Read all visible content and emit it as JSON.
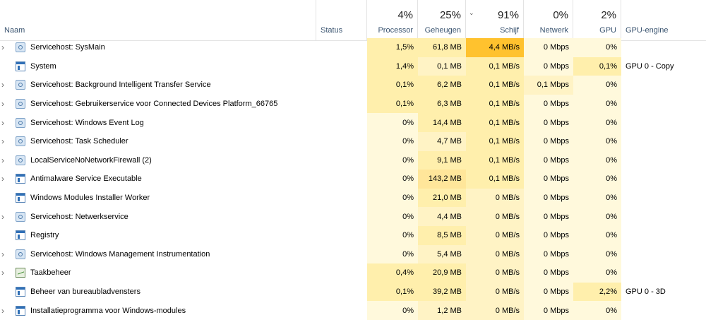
{
  "header": {
    "naam": "Naam",
    "status": "Status",
    "processor": {
      "pct": "4%",
      "label": "Processor"
    },
    "geheugen": {
      "pct": "25%",
      "label": "Geheugen"
    },
    "schijf": {
      "pct": "91%",
      "label": "Schijf"
    },
    "netwerk": {
      "pct": "0%",
      "label": "Netwerk"
    },
    "gpu": {
      "pct": "2%",
      "label": "GPU"
    },
    "gpu_engine": "GPU-engine",
    "sort_indicator": "chevron-down-icon"
  },
  "rows": [
    {
      "name": "Servicehost: SysMain",
      "icon": "gear-icon",
      "expand": true,
      "status": "",
      "cpu": "1,5%",
      "mem": "61,8 MB",
      "disk": "4,4 MB/s",
      "net": "0 Mbps",
      "gpu": "0%",
      "engine": ""
    },
    {
      "name": "System",
      "icon": "window-icon",
      "expand": false,
      "status": "",
      "cpu": "1,4%",
      "mem": "0,1 MB",
      "disk": "0,1 MB/s",
      "net": "0 Mbps",
      "gpu": "0,1%",
      "engine": "GPU 0 - Copy"
    },
    {
      "name": "Servicehost: Background Intelligent Transfer Service",
      "icon": "gear-icon",
      "expand": true,
      "status": "",
      "cpu": "0,1%",
      "mem": "6,2 MB",
      "disk": "0,1 MB/s",
      "net": "0,1 Mbps",
      "gpu": "0%",
      "engine": ""
    },
    {
      "name": "Servicehost: Gebruikerservice voor Connected Devices Platform_66765",
      "icon": "gear-icon",
      "expand": true,
      "status": "",
      "cpu": "0,1%",
      "mem": "6,3 MB",
      "disk": "0,1 MB/s",
      "net": "0 Mbps",
      "gpu": "0%",
      "engine": ""
    },
    {
      "name": "Servicehost: Windows Event Log",
      "icon": "gear-icon",
      "expand": true,
      "status": "",
      "cpu": "0%",
      "mem": "14,4 MB",
      "disk": "0,1 MB/s",
      "net": "0 Mbps",
      "gpu": "0%",
      "engine": ""
    },
    {
      "name": "Servicehost: Task Scheduler",
      "icon": "gear-icon",
      "expand": true,
      "status": "",
      "cpu": "0%",
      "mem": "4,7 MB",
      "disk": "0,1 MB/s",
      "net": "0 Mbps",
      "gpu": "0%",
      "engine": ""
    },
    {
      "name": "LocalServiceNoNetworkFirewall (2)",
      "icon": "gear-icon",
      "expand": true,
      "status": "",
      "cpu": "0%",
      "mem": "9,1 MB",
      "disk": "0,1 MB/s",
      "net": "0 Mbps",
      "gpu": "0%",
      "engine": ""
    },
    {
      "name": "Antimalware Service Executable",
      "icon": "window-icon",
      "expand": true,
      "status": "",
      "cpu": "0%",
      "mem": "143,2 MB",
      "disk": "0,1 MB/s",
      "net": "0 Mbps",
      "gpu": "0%",
      "engine": ""
    },
    {
      "name": "Windows Modules Installer Worker",
      "icon": "window-icon",
      "expand": false,
      "status": "",
      "cpu": "0%",
      "mem": "21,0 MB",
      "disk": "0 MB/s",
      "net": "0 Mbps",
      "gpu": "0%",
      "engine": ""
    },
    {
      "name": "Servicehost: Netwerkservice",
      "icon": "gear-icon",
      "expand": true,
      "status": "",
      "cpu": "0%",
      "mem": "4,4 MB",
      "disk": "0 MB/s",
      "net": "0 Mbps",
      "gpu": "0%",
      "engine": ""
    },
    {
      "name": "Registry",
      "icon": "window-icon",
      "expand": false,
      "status": "",
      "cpu": "0%",
      "mem": "8,5 MB",
      "disk": "0 MB/s",
      "net": "0 Mbps",
      "gpu": "0%",
      "engine": ""
    },
    {
      "name": "Servicehost: Windows Management Instrumentation",
      "icon": "gear-icon",
      "expand": true,
      "status": "",
      "cpu": "0%",
      "mem": "5,4 MB",
      "disk": "0 MB/s",
      "net": "0 Mbps",
      "gpu": "0%",
      "engine": ""
    },
    {
      "name": "Taakbeheer",
      "icon": "taskmanager-icon",
      "expand": true,
      "status": "",
      "cpu": "0,4%",
      "mem": "20,9 MB",
      "disk": "0 MB/s",
      "net": "0 Mbps",
      "gpu": "0%",
      "engine": ""
    },
    {
      "name": "Beheer van bureaubladvensters",
      "icon": "window-icon",
      "expand": false,
      "status": "",
      "cpu": "0,1%",
      "mem": "39,2 MB",
      "disk": "0 MB/s",
      "net": "0 Mbps",
      "gpu": "2,2%",
      "engine": "GPU 0 - 3D"
    },
    {
      "name": "Installatieprogramma voor Windows-modules",
      "icon": "window-icon",
      "expand": true,
      "status": "",
      "cpu": "0%",
      "mem": "1,2 MB",
      "disk": "0 MB/s",
      "net": "0 Mbps",
      "gpu": "0%",
      "engine": ""
    }
  ]
}
